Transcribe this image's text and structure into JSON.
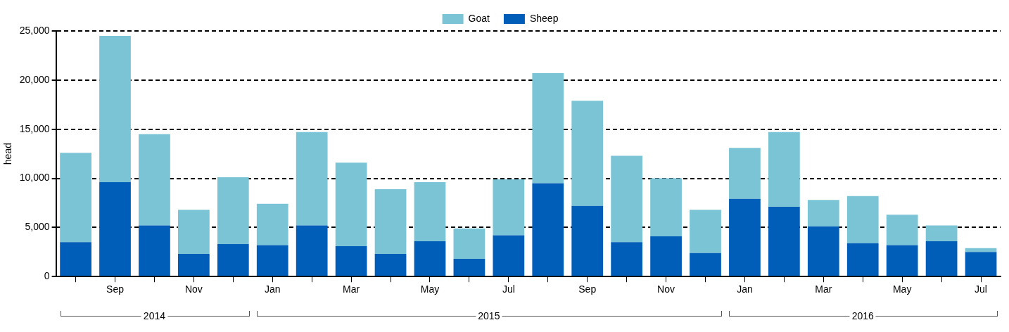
{
  "chart_data": {
    "type": "bar",
    "stacked": true,
    "ylabel": "head",
    "categories": [
      null,
      "Sep",
      null,
      "Nov",
      null,
      "Jan",
      null,
      "Mar",
      null,
      "May",
      null,
      "Jul",
      null,
      "Sep",
      null,
      "Nov",
      null,
      "Jan",
      null,
      "Mar",
      null,
      "May",
      null,
      "Jul"
    ],
    "series": [
      {
        "name": "Sheep",
        "color": "#005eb8",
        "values": [
          3500,
          9600,
          5200,
          2300,
          3300,
          3200,
          5200,
          3100,
          2300,
          3600,
          1800,
          4200,
          9500,
          7200,
          3500,
          4100,
          2400,
          7900,
          7100,
          5100,
          3400,
          3200,
          3600,
          2500
        ]
      },
      {
        "name": "Goat",
        "color": "#7ac4d5",
        "values": [
          9100,
          14900,
          9300,
          4500,
          6800,
          4200,
          9500,
          8500,
          6600,
          6000,
          3100,
          5700,
          11200,
          10700,
          8800,
          5900,
          4400,
          5200,
          7600,
          2700,
          4800,
          3100,
          1600,
          400
        ]
      }
    ],
    "ylim": [
      0,
      25000
    ],
    "yticks": [
      {
        "value": 0,
        "label": "0"
      },
      {
        "value": 5000,
        "label": "5,000"
      },
      {
        "value": 10000,
        "label": "10,000"
      },
      {
        "value": 15000,
        "label": "15,000"
      },
      {
        "value": 20000,
        "label": "20,000"
      },
      {
        "value": 25000,
        "label": "25,000"
      }
    ],
    "grid": "y",
    "legend": "top",
    "annotations": [
      "2014",
      "2015",
      "2016"
    ]
  }
}
